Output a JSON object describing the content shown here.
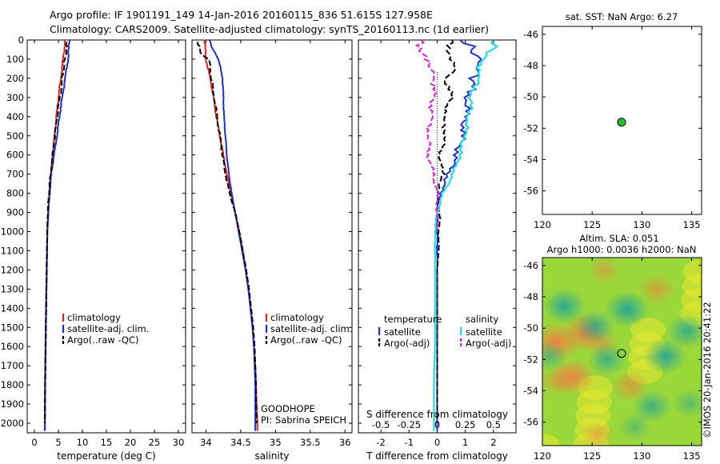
{
  "header": {
    "line1": "Argo profile: IF 1901191_149 14-Jan-2016 20160115_836 51.615S 127.958E",
    "line2": "Climatology: CARS2009. Satellite-adjusted climatology: synTS_20160113.nc (1d earlier)"
  },
  "credit": "©IMOS 20-Jan-2016 20:41:22",
  "colors": {
    "climatology": "#e8231f",
    "satellite": "#1c2fd8",
    "argo": "#000000",
    "sal_satellite": "#22dede",
    "sal_argo": "#e020e0",
    "marker": "#22c02a"
  },
  "chart_data": [
    {
      "id": "temperature",
      "type": "line",
      "xlabel": "temperature (deg C)",
      "ylabel": "",
      "xlim": [
        -1.5,
        31.5
      ],
      "ylim": [
        2050,
        0
      ],
      "xticks": [
        0,
        5,
        10,
        15,
        20,
        25,
        30
      ],
      "yticks": [
        0,
        100,
        200,
        300,
        400,
        500,
        600,
        700,
        800,
        900,
        1000,
        1100,
        1200,
        1300,
        1400,
        1500,
        1600,
        1700,
        1800,
        1900,
        2000
      ],
      "legend": [
        "climatology",
        "satellite-adj. clim.",
        "Argo(..raw -QC)"
      ],
      "series": [
        {
          "name": "climatology",
          "color": "#e8231f",
          "style": "solid",
          "points": [
            [
              6.4,
              0
            ],
            [
              6.0,
              100
            ],
            [
              5.5,
              200
            ],
            [
              5.0,
              300
            ],
            [
              4.6,
              400
            ],
            [
              4.2,
              500
            ],
            [
              3.8,
              600
            ],
            [
              3.4,
              700
            ],
            [
              3.1,
              800
            ],
            [
              2.9,
              900
            ],
            [
              2.7,
              1000
            ],
            [
              2.6,
              1200
            ],
            [
              2.45,
              1400
            ],
            [
              2.35,
              1600
            ],
            [
              2.25,
              1800
            ],
            [
              2.2,
              2000
            ],
            [
              2.2,
              2040
            ]
          ]
        },
        {
          "name": "satellite-adj. clim.",
          "color": "#1c2fd8",
          "style": "solid",
          "points": [
            [
              7.3,
              0
            ],
            [
              7.0,
              100
            ],
            [
              6.4,
              200
            ],
            [
              5.8,
              300
            ],
            [
              5.2,
              400
            ],
            [
              4.7,
              500
            ],
            [
              4.1,
              600
            ],
            [
              3.5,
              700
            ],
            [
              3.2,
              800
            ],
            [
              2.9,
              900
            ],
            [
              2.7,
              1000
            ],
            [
              2.55,
              1200
            ],
            [
              2.4,
              1400
            ],
            [
              2.3,
              1600
            ],
            [
              2.2,
              1800
            ],
            [
              2.15,
              2000
            ],
            [
              2.15,
              2040
            ]
          ]
        },
        {
          "name": "Argo(..raw -QC)",
          "color": "#000000",
          "style": "dashed",
          "points": [
            [
              6.8,
              10
            ],
            [
              6.4,
              100
            ],
            [
              6.1,
              150
            ],
            [
              5.6,
              250
            ],
            [
              5.0,
              350
            ],
            [
              4.5,
              450
            ],
            [
              4.0,
              550
            ],
            [
              3.6,
              650
            ],
            [
              3.2,
              750
            ],
            [
              2.9,
              850
            ],
            [
              2.7,
              950
            ],
            [
              2.6,
              1100
            ],
            [
              2.5,
              1300
            ],
            [
              2.4,
              1500
            ],
            [
              2.3,
              1700
            ],
            [
              2.2,
              1900
            ],
            [
              2.2,
              2000
            ]
          ]
        }
      ],
      "annotations": []
    },
    {
      "id": "salinity",
      "type": "line",
      "xlabel": "salinity",
      "ylabel": "",
      "xlim": [
        33.8,
        36.1
      ],
      "ylim": [
        2050,
        0
      ],
      "xticks": [
        34,
        34.5,
        35,
        35.5,
        36
      ],
      "xticklabels": [
        "34",
        "34.5",
        "35",
        "35.5",
        "36"
      ],
      "legend": [
        "climatology",
        "satellite-adj. clim.",
        "Argo(..raw -QC)"
      ],
      "series": [
        {
          "name": "climatology",
          "color": "#e8231f",
          "style": "solid",
          "points": [
            [
              33.98,
              0
            ],
            [
              34.0,
              100
            ],
            [
              34.06,
              200
            ],
            [
              34.11,
              300
            ],
            [
              34.15,
              400
            ],
            [
              34.2,
              500
            ],
            [
              34.25,
              600
            ],
            [
              34.3,
              700
            ],
            [
              34.36,
              800
            ],
            [
              34.42,
              900
            ],
            [
              34.48,
              1000
            ],
            [
              34.53,
              1100
            ],
            [
              34.57,
              1200
            ],
            [
              34.61,
              1300
            ],
            [
              34.64,
              1400
            ],
            [
              34.67,
              1500
            ],
            [
              34.69,
              1600
            ],
            [
              34.71,
              1700
            ],
            [
              34.72,
              1800
            ],
            [
              34.73,
              1900
            ],
            [
              34.74,
              2000
            ],
            [
              34.74,
              2040
            ]
          ]
        },
        {
          "name": "satellite-adj. clim.",
          "color": "#1c2fd8",
          "style": "solid",
          "points": [
            [
              34.05,
              0
            ],
            [
              34.1,
              50
            ],
            [
              34.18,
              100
            ],
            [
              34.24,
              200
            ],
            [
              34.25,
              300
            ],
            [
              34.26,
              400
            ],
            [
              34.28,
              500
            ],
            [
              34.3,
              600
            ],
            [
              34.33,
              700
            ],
            [
              34.37,
              800
            ],
            [
              34.42,
              900
            ],
            [
              34.47,
              1000
            ],
            [
              34.52,
              1100
            ],
            [
              34.57,
              1200
            ],
            [
              34.61,
              1300
            ],
            [
              34.64,
              1400
            ],
            [
              34.67,
              1500
            ],
            [
              34.69,
              1600
            ],
            [
              34.7,
              1700
            ],
            [
              34.71,
              1800
            ],
            [
              34.71,
              1900
            ],
            [
              34.71,
              2000
            ],
            [
              34.71,
              2040
            ]
          ]
        },
        {
          "name": "Argo(..raw -QC)",
          "color": "#000000",
          "style": "dashed",
          "points": [
            [
              33.88,
              10
            ],
            [
              33.92,
              50
            ],
            [
              33.95,
              80
            ],
            [
              34.04,
              100
            ],
            [
              34.08,
              200
            ],
            [
              34.12,
              300
            ],
            [
              34.16,
              400
            ],
            [
              34.2,
              500
            ],
            [
              34.24,
              600
            ],
            [
              34.28,
              700
            ],
            [
              34.34,
              800
            ],
            [
              34.42,
              900
            ],
            [
              34.48,
              1000
            ],
            [
              34.53,
              1100
            ],
            [
              34.58,
              1200
            ],
            [
              34.62,
              1300
            ],
            [
              34.65,
              1400
            ],
            [
              34.68,
              1500
            ],
            [
              34.7,
              1600
            ],
            [
              34.71,
              1700
            ],
            [
              34.72,
              1800
            ],
            [
              34.72,
              1900
            ],
            [
              34.73,
              2000
            ]
          ]
        }
      ],
      "annotations": [
        "GOODHOPE",
        "PI: Sabrina SPEICH"
      ]
    },
    {
      "id": "difference",
      "type": "line",
      "xlabel": "T difference from climatology",
      "top_label": "S difference from climatology",
      "xlim": [
        -2.8,
        2.8
      ],
      "ylim": [
        2050,
        0
      ],
      "xticks": [
        -2,
        -1,
        0,
        1,
        2
      ],
      "sticks": [
        -0.5,
        -0.25,
        0,
        0.25,
        0.5
      ],
      "sticklabels": [
        "-0.5",
        "-0.25",
        "0",
        "0.25",
        "0.5"
      ],
      "legend_titles": [
        "temperature",
        "salinity"
      ],
      "legend": [
        "satellite",
        "Argo(-adj)",
        "satellite",
        "Argo(-adj)"
      ],
      "series": [
        {
          "name": "satellite",
          "group": "temperature",
          "color": "#1c2fd8",
          "style": "solid",
          "points": [
            [
              0.9,
              0
            ],
            [
              1.3,
              50
            ],
            [
              1.5,
              100
            ],
            [
              1.4,
              150
            ],
            [
              1.3,
              200
            ],
            [
              1.1,
              300
            ],
            [
              1.0,
              400
            ],
            [
              0.9,
              500
            ],
            [
              0.7,
              600
            ],
            [
              0.4,
              700
            ],
            [
              0.1,
              800
            ],
            [
              0.0,
              900
            ],
            [
              0.0,
              2040
            ]
          ]
        },
        {
          "name": "Argo(-adj)",
          "group": "temperature",
          "color": "#000000",
          "style": "dashed",
          "points": [
            [
              0.5,
              0
            ],
            [
              0.4,
              100
            ],
            [
              0.7,
              150
            ],
            [
              0.3,
              200
            ],
            [
              0.5,
              300
            ],
            [
              0.2,
              400
            ],
            [
              0.3,
              500
            ],
            [
              0.1,
              600
            ],
            [
              0.2,
              700
            ],
            [
              0.0,
              800
            ],
            [
              0.1,
              900
            ],
            [
              0.05,
              1000
            ],
            [
              0.05,
              1100
            ],
            [
              0.0,
              1200
            ],
            [
              0.0,
              1400
            ],
            [
              0.0,
              2000
            ]
          ]
        },
        {
          "name": "satellite",
          "group": "salinity",
          "color": "#22dede",
          "style": "solid",
          "points": [
            [
              0.5,
              0
            ],
            [
              0.5,
              50
            ],
            [
              0.4,
              100
            ],
            [
              0.36,
              200
            ],
            [
              0.3,
              300
            ],
            [
              0.28,
              400
            ],
            [
              0.24,
              500
            ],
            [
              0.2,
              600
            ],
            [
              0.14,
              700
            ],
            [
              0.05,
              800
            ],
            [
              0.0,
              900
            ],
            [
              -0.02,
              1000
            ],
            [
              -0.02,
              1200
            ],
            [
              -0.02,
              1400
            ],
            [
              -0.02,
              1600
            ],
            [
              -0.03,
              1800
            ],
            [
              -0.03,
              2000
            ],
            [
              -0.03,
              2040
            ]
          ]
        },
        {
          "name": "Argo(-adj)",
          "group": "salinity",
          "color": "#e020e0",
          "style": "dashed",
          "points": [
            [
              -0.15,
              0
            ],
            [
              -0.12,
              100
            ],
            [
              -0.05,
              150
            ],
            [
              -0.02,
              200
            ],
            [
              -0.04,
              300
            ],
            [
              -0.06,
              400
            ],
            [
              -0.08,
              500
            ],
            [
              -0.08,
              600
            ],
            [
              -0.04,
              700
            ],
            [
              0.0,
              800
            ],
            [
              0.0,
              900
            ],
            [
              0.0,
              1000
            ]
          ]
        }
      ],
      "annotations": []
    },
    {
      "id": "map-sst",
      "type": "scatter",
      "title": "sat. SST: NaN Argo: 6.27",
      "xlim": [
        120,
        136
      ],
      "ylim": [
        -57.5,
        -45.5
      ],
      "xticks": [
        120,
        125,
        130,
        135
      ],
      "yticks": [
        -46,
        -48,
        -50,
        -52,
        -54,
        -56
      ],
      "points": [
        [
          127.958,
          -51.615
        ]
      ]
    },
    {
      "id": "map-sla",
      "type": "heatmap",
      "title": "Altim. SLA: 0.051",
      "subtitle": "Argo h1000: 0.0036 h2000: NaN",
      "xlim": [
        120,
        136
      ],
      "ylim": [
        -57.5,
        -45.5
      ],
      "xticks": [
        120,
        125,
        130,
        135
      ],
      "yticks": [
        -46,
        -48,
        -50,
        -52,
        -54,
        -56
      ],
      "points": [
        [
          127.958,
          -51.615
        ]
      ],
      "blobs": [
        {
          "lon": 121.4,
          "lat": -50.9,
          "v": 0.9
        },
        {
          "lon": 124.3,
          "lat": -50.3,
          "v": 0.85
        },
        {
          "lon": 123.0,
          "lat": -53.1,
          "v": 0.8
        },
        {
          "lon": 128.8,
          "lat": -53.7,
          "v": 0.5
        },
        {
          "lon": 131.5,
          "lat": -47.5,
          "v": 0.45
        },
        {
          "lon": 121.5,
          "lat": -53.4,
          "v": 0.4
        },
        {
          "lon": 126.2,
          "lat": -46.3,
          "v": 0.35
        },
        {
          "lon": 126.0,
          "lat": -51.0,
          "v": 0.35
        },
        {
          "lon": 125.5,
          "lat": -56.8,
          "v": 0.35
        },
        {
          "lon": 122.2,
          "lat": -48.6,
          "v": -0.7
        },
        {
          "lon": 128.5,
          "lat": -48.8,
          "v": -0.75
        },
        {
          "lon": 125.3,
          "lat": -49.9,
          "v": -0.6
        },
        {
          "lon": 126.5,
          "lat": -52.0,
          "v": -0.55
        },
        {
          "lon": 132.3,
          "lat": -51.8,
          "v": -0.7
        },
        {
          "lon": 134.5,
          "lat": -50.2,
          "v": -0.6
        },
        {
          "lon": 131.0,
          "lat": -55.0,
          "v": -0.55
        },
        {
          "lon": 120.7,
          "lat": -51.8,
          "v": -0.4
        },
        {
          "lon": 134.8,
          "lat": -54.8,
          "v": -0.35
        },
        {
          "lon": 129.3,
          "lat": -56.3,
          "v": -0.3
        }
      ]
    }
  ],
  "panel_colors": {
    "heat_low": "#1aa0a0",
    "heat_mid": "#e8e830",
    "heat_high": "#f08040",
    "heat_base": "#9ad83a"
  }
}
